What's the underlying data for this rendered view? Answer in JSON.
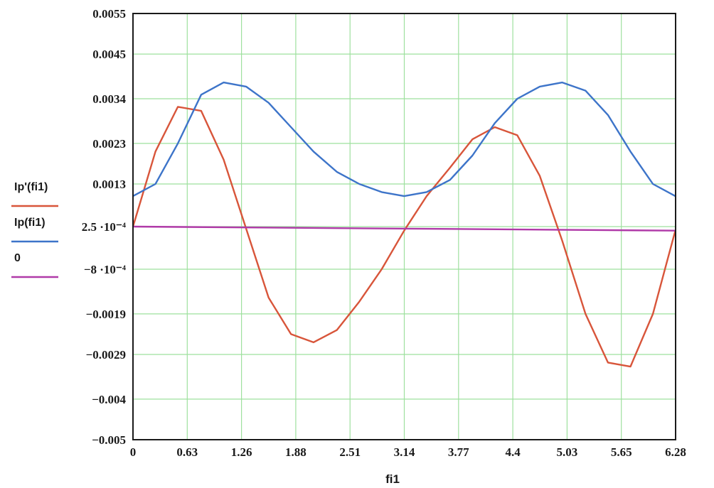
{
  "chart_data": {
    "type": "line",
    "xlabel": "fi1",
    "xlim": [
      0,
      6.283
    ],
    "ylim": [
      -0.005,
      0.0055
    ],
    "grid": true,
    "grid_color": "#9ee09e",
    "x_tick_labels": [
      "0",
      "0.63",
      "1.26",
      "1.88",
      "2.51",
      "3.14",
      "3.77",
      "4.4",
      "5.03",
      "5.65",
      "6.28"
    ],
    "y_tick_labels": [
      {
        "v": 0.0055,
        "label": "0.0055"
      },
      {
        "v": 0.0045,
        "label": "0.0045"
      },
      {
        "v": 0.0034,
        "label": "0.0034"
      },
      {
        "v": 0.0023,
        "label": "0.0023"
      },
      {
        "v": 0.0013,
        "label": "0.0013"
      },
      {
        "v": 0.00025,
        "label": "2.5 ·10⁻⁴"
      },
      {
        "v": -0.0008,
        "label": "−8 ·10⁻⁴"
      },
      {
        "v": -0.0019,
        "label": "−0.0019"
      },
      {
        "v": -0.0029,
        "label": "−0.0029"
      },
      {
        "v": -0.004,
        "label": "−0.004"
      },
      {
        "v": -0.005,
        "label": "−0.005"
      }
    ],
    "legend": {
      "placement": "left",
      "entries": [
        {
          "label": "Ip'(fi1)",
          "color": "#d8553a"
        },
        {
          "label": "Ip(fi1)",
          "color": "#3d74c9"
        },
        {
          "label": "0",
          "color": "#b03aa8"
        }
      ]
    },
    "series": [
      {
        "name": "Ip'(fi1)",
        "color": "#d8553a",
        "x": [
          0,
          0.26,
          0.52,
          0.79,
          1.05,
          1.31,
          1.57,
          1.83,
          2.09,
          2.36,
          2.62,
          2.88,
          3.14,
          3.4,
          3.67,
          3.93,
          4.19,
          4.45,
          4.71,
          4.97,
          5.24,
          5.5,
          5.76,
          6.02,
          6.28
        ],
        "y": [
          0.00025,
          0.0021,
          0.0032,
          0.0031,
          0.0019,
          0.0002,
          -0.0015,
          -0.0024,
          -0.0026,
          -0.0023,
          -0.0016,
          -0.0008,
          0.00015,
          0.001,
          0.0017,
          0.0024,
          0.0027,
          0.0025,
          0.0015,
          -0.0001,
          -0.0019,
          -0.0031,
          -0.0032,
          -0.0019,
          0.00015
        ]
      },
      {
        "name": "Ip(fi1)",
        "color": "#3d74c9",
        "x": [
          0,
          0.26,
          0.52,
          0.79,
          1.05,
          1.31,
          1.57,
          1.83,
          2.09,
          2.36,
          2.62,
          2.88,
          3.14,
          3.4,
          3.67,
          3.93,
          4.19,
          4.45,
          4.71,
          4.97,
          5.24,
          5.5,
          5.76,
          6.02,
          6.28
        ],
        "y": [
          0.001,
          0.0013,
          0.0023,
          0.0035,
          0.0038,
          0.0037,
          0.0033,
          0.0027,
          0.0021,
          0.0016,
          0.0013,
          0.0011,
          0.001,
          0.0011,
          0.0014,
          0.002,
          0.0028,
          0.0034,
          0.0037,
          0.0038,
          0.0036,
          0.003,
          0.0021,
          0.0013,
          0.001
        ]
      },
      {
        "name": "0",
        "color": "#b03aa8",
        "x": [
          0,
          6.28
        ],
        "y": [
          0.00025,
          0.00015
        ]
      }
    ]
  }
}
